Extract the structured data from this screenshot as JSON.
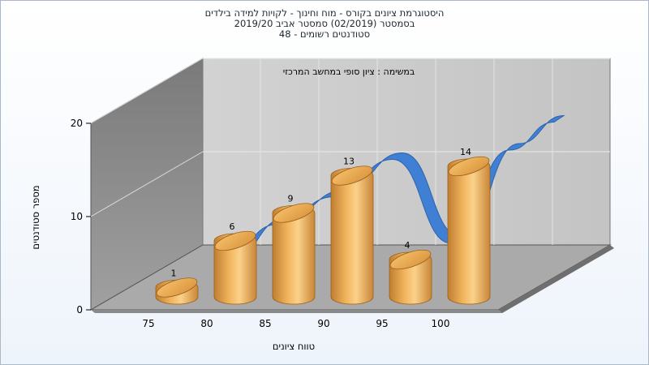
{
  "chart_data": {
    "type": "bar",
    "title_lines": [
      "היסטוגרמת ציונים בקורס - מוח וחינוך - לקויות למידה בילדים",
      "בסמסטר  (02/2019)  סמסטר אביב 2019/20",
      "סטודנטים רשומים - 48"
    ],
    "legend_text": "במשימה : ציון סופי במחשב המרכזי",
    "xlabel": "טווח ציונים",
    "ylabel": "מספר סטודנטים",
    "x_ticks": [
      "75",
      "80",
      "85",
      "90",
      "95",
      "100"
    ],
    "y_ticks": [
      "0",
      "10",
      "20"
    ],
    "ylim": [
      0,
      20
    ],
    "categories": [
      "75-80",
      "80-85",
      "85-90",
      "90-95",
      "95-100",
      "100"
    ],
    "values": [
      1,
      6,
      9,
      13,
      4,
      14
    ],
    "data_labels": [
      "1",
      "6",
      "9",
      "13",
      "4",
      "14"
    ],
    "trend_line": true,
    "grid": true,
    "colors": {
      "bar": "#e8a64a",
      "bar_light": "#fbd48e",
      "bar_dark": "#b9762a",
      "trend": "#3f7fd4",
      "back_wall": "#c9c9c9",
      "side_wall": "#8a8a8a",
      "floor": "#a9a9a9"
    }
  }
}
